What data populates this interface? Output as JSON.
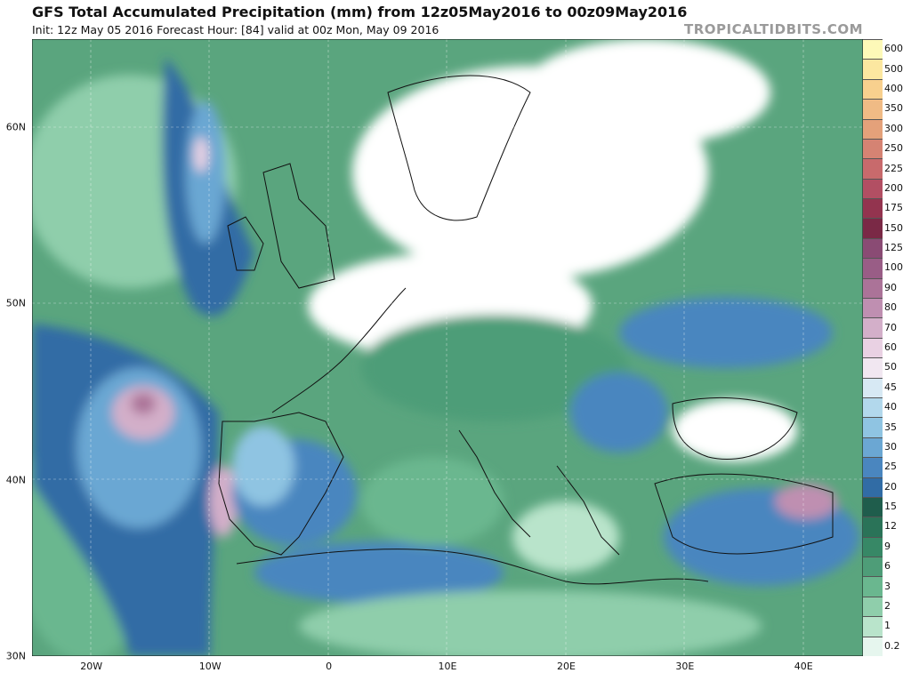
{
  "header": {
    "title": "GFS Total Accumulated Precipitation (mm) from 12z05May2016 to 00z09May2016",
    "subtitle": "Init: 12z May 05 2016   Forecast Hour: [84]   valid at 00z Mon, May 09 2016",
    "brand": "TROPICALTIDBITS.COM"
  },
  "axes": {
    "lat_labels": [
      "60N",
      "50N",
      "40N",
      "30N"
    ],
    "lat_values": [
      60,
      50,
      40,
      30
    ],
    "lon_labels": [
      "20W",
      "10W",
      "0",
      "10E",
      "20E",
      "30E",
      "40E"
    ],
    "lon_values": [
      -20,
      -10,
      0,
      10,
      20,
      30,
      40
    ],
    "lon_range": [
      -25,
      45
    ],
    "lat_range": [
      30,
      65
    ]
  },
  "colorbar": {
    "unit": "mm",
    "levels": [
      "600",
      "500",
      "400",
      "350",
      "300",
      "250",
      "225",
      "200",
      "175",
      "150",
      "125",
      "100",
      "90",
      "80",
      "70",
      "60",
      "50",
      "45",
      "40",
      "35",
      "30",
      "25",
      "20",
      "15",
      "12",
      "9",
      "6",
      "3",
      "2",
      "1",
      "0.2"
    ],
    "colors": [
      "#fdf9b8",
      "#fce7a0",
      "#f8d08e",
      "#f0bb85",
      "#e4a17a",
      "#d58373",
      "#c86a6c",
      "#b24f63",
      "#93344f",
      "#7a2946",
      "#8a4b74",
      "#995d86",
      "#ab7398",
      "#bf8fb1",
      "#d3afc9",
      "#e9d1e3",
      "#f1e7f1",
      "#d7e9f4",
      "#b2d8ec",
      "#8fc4e2",
      "#6ba7d3",
      "#4a86bf",
      "#316ca5",
      "#1f5d4c",
      "#2a7358",
      "#378866",
      "#4e9d78",
      "#6ab78f",
      "#8fceab",
      "#b9e4cb",
      "#e6f6ee"
    ]
  },
  "legend": {
    "water": "#2f6fa8",
    "land": "#4f9a72",
    "dry": "#ffffff"
  }
}
